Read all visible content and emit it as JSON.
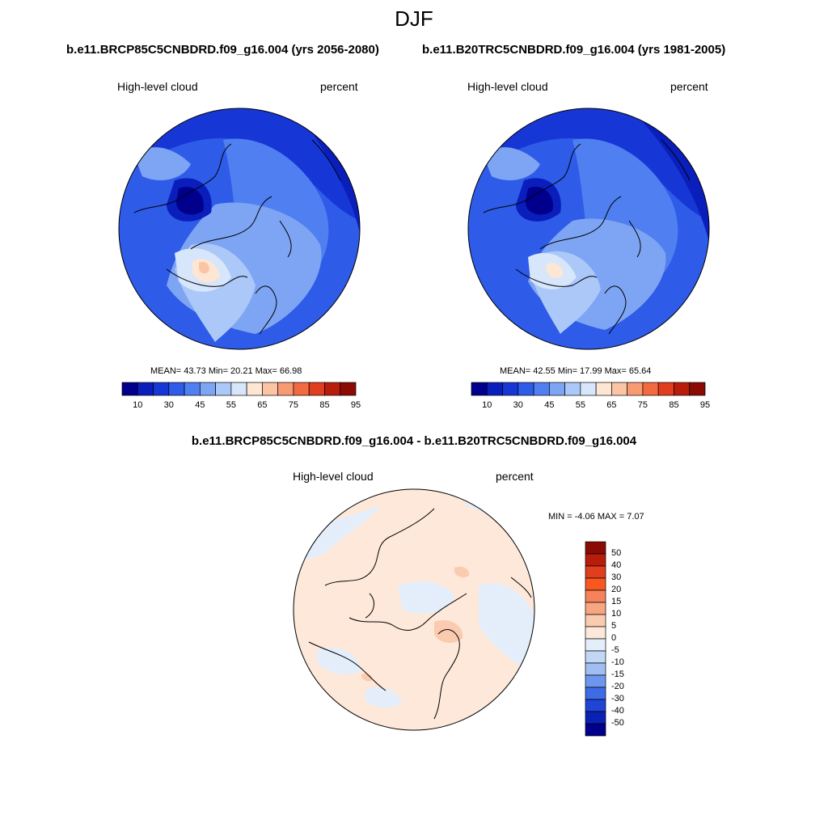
{
  "figure": {
    "season": "DJF",
    "case_a": "b.e11.BRCP85C5CNBDRD.f09_g16.004 (yrs 2056-2080)",
    "case_b": "b.e11.B20TRC5CNBDRD.f09_g16.004 (yrs 1981-2005)",
    "diff_title": "b.e11.BRCP85C5CNBDRD.f09_g16.004 - b.e11.B20TRC5CNBDRD.f09_g16.004"
  },
  "panels": {
    "a": {
      "variable": "High-level cloud",
      "units": "percent",
      "stats_text": "MEAN=  43.73  Min=  20.21  Max=  66.98",
      "mean": 43.73,
      "min": 20.21,
      "max": 66.98
    },
    "b": {
      "variable": "High-level cloud",
      "units": "percent",
      "stats_text": "MEAN=  42.55  Min=  17.99  Max=  65.64",
      "mean": 42.55,
      "min": 17.99,
      "max": 65.64
    },
    "diff": {
      "variable": "High-level cloud",
      "units": "percent",
      "stats_text": "MIN =  -4.06 MAX =   7.07",
      "min": -4.06,
      "max": 7.07
    }
  },
  "colorbar_abs": {
    "tick_labels": [
      "10",
      "30",
      "45",
      "55",
      "65",
      "75",
      "85",
      "95"
    ],
    "colors": [
      "#00008c",
      "#0a1ebc",
      "#1637d6",
      "#2e5be8",
      "#4f7ff0",
      "#7ea5f4",
      "#abc8f8",
      "#d7e6fb",
      "#fde6d4",
      "#fbc4a4",
      "#f89a72",
      "#f26a40",
      "#e03e1e",
      "#b81d0c",
      "#8c0a04"
    ]
  },
  "colorbar_diff": {
    "labels": [
      "50",
      "40",
      "30",
      "20",
      "15",
      "10",
      "5",
      "0",
      "-5",
      "-10",
      "-15",
      "-20",
      "-30",
      "-40",
      "-50"
    ],
    "colors": [
      "#8c0a04",
      "#b81d0c",
      "#e03e1e",
      "#f8581f",
      "#f5825a",
      "#f8a582",
      "#fbcbb0",
      "#fde8da",
      "#e4eefb",
      "#c2d7f6",
      "#a0bef2",
      "#6f96ee",
      "#3f6be5",
      "#1f44d6",
      "#0a22b4",
      "#00008c"
    ]
  }
}
